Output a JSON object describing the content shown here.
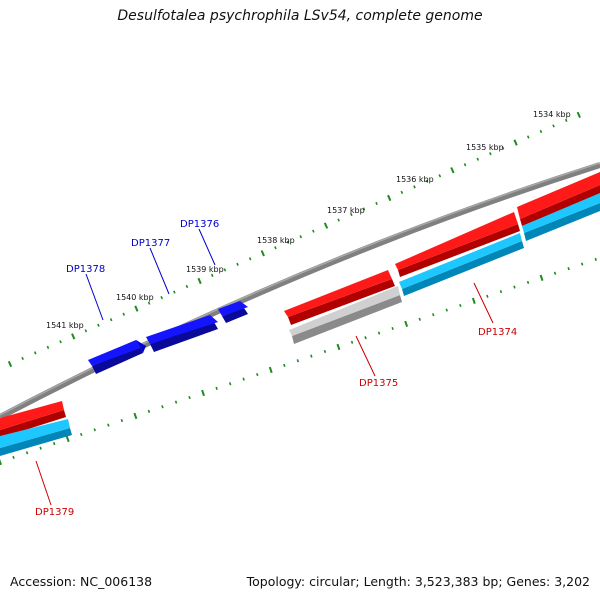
{
  "title": "Desulfotalea psychrophila LSv54, complete genome",
  "footer": {
    "accession": "Accession: NC_006138",
    "topology": "Topology: circular; Length: 3,523,383 bp; Genes: 3,202"
  },
  "colors": {
    "background": "#ffffff",
    "backbone": "#808080",
    "forward_gene": "#ff0000",
    "reverse_gene": "#0000ff",
    "cds_cyan": "#00c8ff",
    "rna_gray": "#c0c0c0",
    "tick": "#1f8a1f",
    "forward_label": "#cc0000",
    "reverse_label": "#0000cc"
  },
  "scale_labels": [
    {
      "text": "1534 kbp"
    },
    {
      "text": "1535 kbp"
    },
    {
      "text": "1536 kbp"
    },
    {
      "text": "1537 kbp"
    },
    {
      "text": "1538 kbp"
    },
    {
      "text": "1539 kbp"
    },
    {
      "text": "1540 kbp"
    },
    {
      "text": "1541 kbp"
    }
  ],
  "genes": [
    {
      "name": "DP1374",
      "strand": "forward"
    },
    {
      "name": "DP1375",
      "strand": "forward"
    },
    {
      "name": "DP1376",
      "strand": "reverse"
    },
    {
      "name": "DP1377",
      "strand": "reverse"
    },
    {
      "name": "DP1378",
      "strand": "reverse"
    },
    {
      "name": "DP1379",
      "strand": "forward"
    }
  ]
}
